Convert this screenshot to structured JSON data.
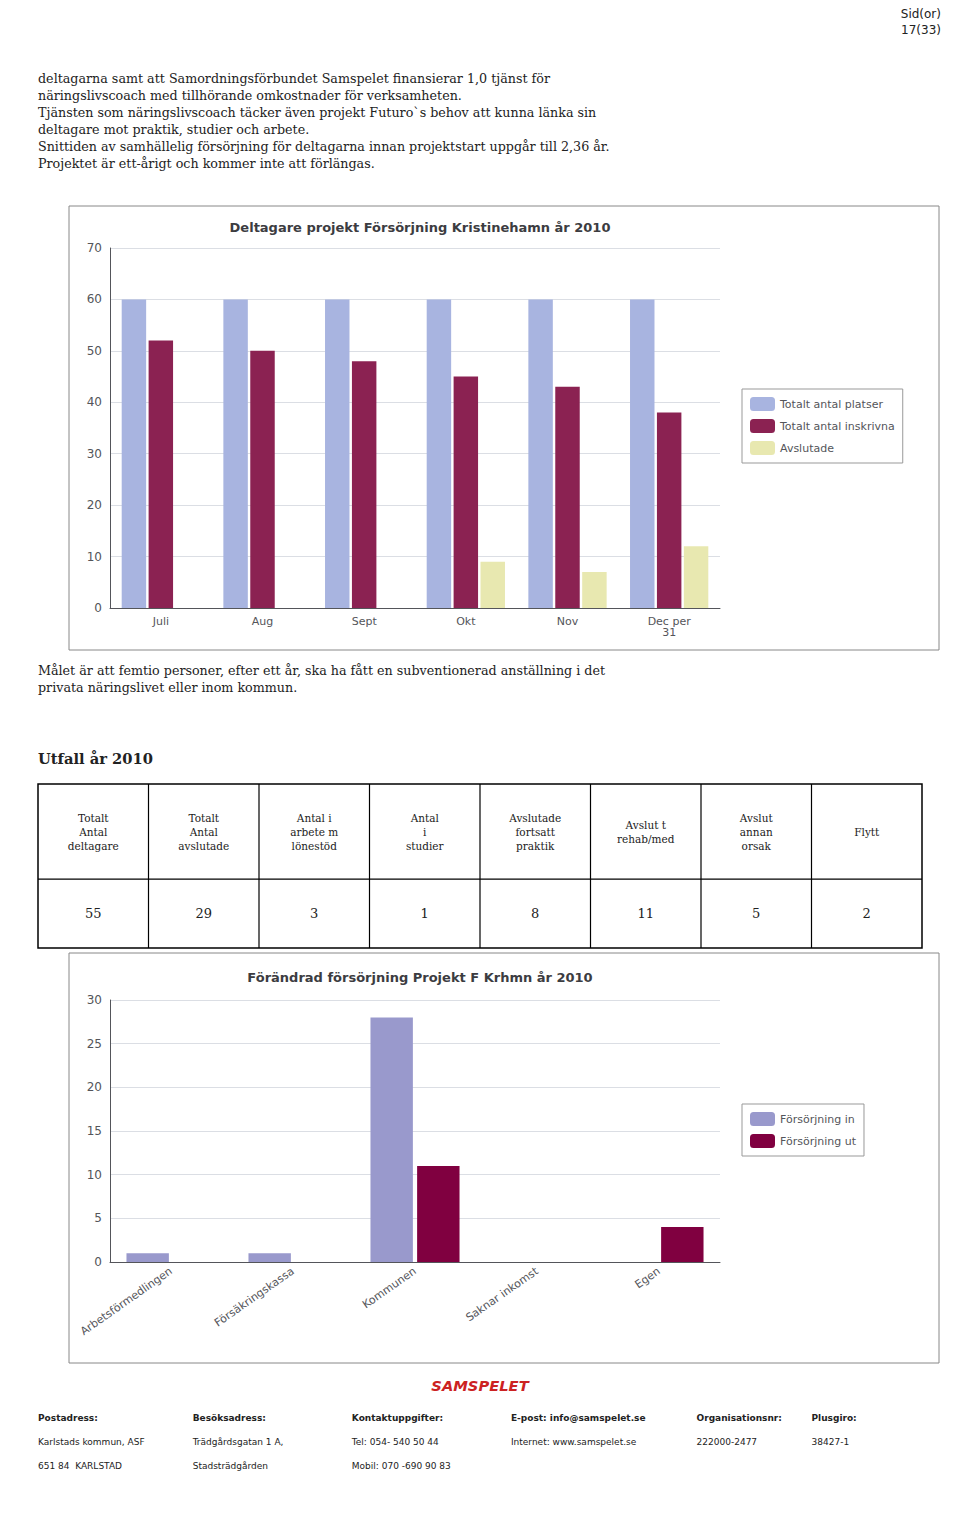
{
  "chart_data": [
    {
      "type": "bar",
      "title": "Deltagare projekt Försörjning Kristinehamn år 2010",
      "categories": [
        "Juli",
        "Aug",
        "Sept",
        "Okt",
        "Nov",
        "Dec per\n31"
      ],
      "series": [
        {
          "name": "Totalt antal platser",
          "color": "#a8b4e0",
          "values": [
            60,
            60,
            60,
            60,
            60,
            60
          ]
        },
        {
          "name": "Totalt antal inskrivna",
          "color": "#8b2252",
          "values": [
            52,
            50,
            48,
            45,
            43,
            38
          ]
        },
        {
          "name": "Avslutade",
          "color": "#e8e8b0",
          "values": [
            0,
            0,
            0,
            9,
            7,
            12
          ]
        }
      ],
      "ylim": [
        0,
        70
      ],
      "yticks": [
        0,
        10,
        20,
        30,
        40,
        50,
        60,
        70
      ],
      "grid": true,
      "legend": "right"
    },
    {
      "type": "bar",
      "title": "Förändrad försörjning Projekt F Krhmn år 2010",
      "categories": [
        "Arbetsförmedlingen",
        "Försäkringskassa",
        "Kommunen",
        "Saknar inkomst",
        "Egen"
      ],
      "series": [
        {
          "name": "Försörjning in",
          "color": "#9999cc",
          "values": [
            1,
            1,
            28,
            0,
            0
          ]
        },
        {
          "name": "Försörjning ut",
          "color": "#800040",
          "values": [
            0,
            0,
            11,
            0,
            4
          ]
        }
      ],
      "ylim": [
        0,
        30
      ],
      "yticks": [
        0,
        5,
        10,
        15,
        20,
        25,
        30
      ],
      "grid": true,
      "legend": "right"
    }
  ],
  "annotations": [
    "Sid(or)\n17(33)",
    "deltagarna samt att Samordningsförbundet Samspelet finansierar 1,0 tjänst för\nnäringslivscoach med tillhörande omkostnader för verksamheten.\nTjänsten som näringslivscoach täcker även projekt Futuro`s behov att kunna länka sin\ndeltagare mot praktik, studier och arbete.\nSnittiden av samhällelig försörjning för deltagarna innan projektstart uppgår till 2,36 år.\nProjektet är ett-årigt och kommer inte att förlängas.",
    "Målet är att femtio personer, efter ett år, ska ha fått en subventionerad anställning i det\nprivata näringslivet eller inom kommun.",
    "Utfall år 2010",
    [
      "Totalt\nAntal\ndeltagare",
      "Totalt\nAntal\navslutade",
      "Antal i\narbete m\nlönestöd",
      "Antal\ni\nstudier",
      "Avslutade\nfortsatt\npraktik",
      "Avslut t\nrehab/med",
      "Avslut\nannan\norsak",
      "Flytt"
    ],
    [
      "55",
      "29",
      "3",
      "1",
      "8",
      "11",
      "5",
      "2"
    ],
    "SAMSPELET",
    [
      [
        "Postadress:",
        "Karlstads kommun, ASF",
        "651 84  KARLSTAD"
      ],
      [
        "Besöksadress:",
        "Trädgårdsgatan 1 A,",
        "Stadsträdgården"
      ],
      [
        "Kontaktuppgifter:",
        "Tel: 054- 540 50 44",
        "Mobil: 070 -690 90 83"
      ],
      [
        "E-post: info@samspelet.se",
        "Internet: www.samspelet.se"
      ],
      [
        "Organisationsnr:",
        "222000-2477"
      ],
      [
        "Plusgiro:",
        "38427-1"
      ]
    ]
  ]
}
